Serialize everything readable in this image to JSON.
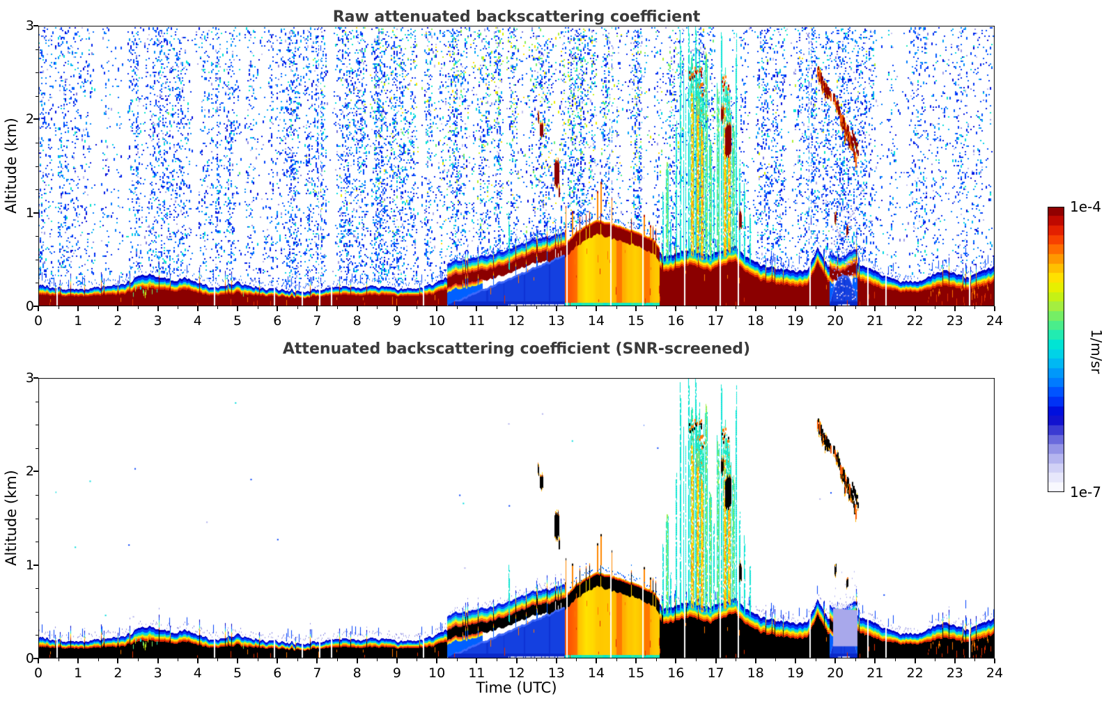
{
  "figure": {
    "background": "#ffffff"
  },
  "chart_data": {
    "type": "heatmap",
    "panels": [
      {
        "id": "raw",
        "title": "Raw attenuated backscattering coefficient",
        "noise_screened": false
      },
      {
        "id": "screened",
        "title": "Attenuated backscattering coefficient (SNR-screened)",
        "noise_screened": true
      }
    ],
    "x_axis": {
      "label": "Time (UTC)",
      "min": 0,
      "max": 24,
      "major_ticks": [
        0,
        1,
        2,
        3,
        4,
        5,
        6,
        7,
        8,
        9,
        10,
        11,
        12,
        13,
        14,
        15,
        16,
        17,
        18,
        19,
        20,
        21,
        22,
        23,
        24
      ],
      "minor_step": 0.5
    },
    "y_axis": {
      "label": "Altitude (km)",
      "min": 0,
      "max": 3,
      "major_ticks": [
        0,
        1,
        2,
        3
      ],
      "minor_step": 0.25
    },
    "colorbar": {
      "top_label": "1e-4",
      "bottom_label": "1e-7",
      "unit_label": "1/m/sr",
      "scale": "log",
      "n_steps": 30,
      "stops": [
        [
          0.0,
          "#ffffff"
        ],
        [
          0.03,
          "#f2f2fd"
        ],
        [
          0.06,
          "#e2e2fa"
        ],
        [
          0.09,
          "#ccccf5"
        ],
        [
          0.12,
          "#b2b2ee"
        ],
        [
          0.15,
          "#9494e6"
        ],
        [
          0.18,
          "#6f6fdd"
        ],
        [
          0.21,
          "#4444d4"
        ],
        [
          0.24,
          "#1b1bcd"
        ],
        [
          0.27,
          "#0000d2"
        ],
        [
          0.3,
          "#0022ee"
        ],
        [
          0.34,
          "#0048ff"
        ],
        [
          0.38,
          "#0078ff"
        ],
        [
          0.43,
          "#00a4f8"
        ],
        [
          0.47,
          "#00ccee"
        ],
        [
          0.52,
          "#00e6d2"
        ],
        [
          0.56,
          "#2deca6"
        ],
        [
          0.61,
          "#6cee6c"
        ],
        [
          0.65,
          "#a4ee40"
        ],
        [
          0.7,
          "#d6f200"
        ],
        [
          0.74,
          "#ffea00"
        ],
        [
          0.78,
          "#ffc400"
        ],
        [
          0.82,
          "#ff9400"
        ],
        [
          0.86,
          "#ff5e00"
        ],
        [
          0.9,
          "#f22c00"
        ],
        [
          0.94,
          "#cd0e00"
        ],
        [
          0.97,
          "#a30000"
        ],
        [
          1.0,
          "#7a0000"
        ]
      ]
    },
    "palette": {
      "core_raw": "#8b0000",
      "core_screened": "#000000",
      "wedge_blue": "#1440e0",
      "wedge_deep": "#0a28c8",
      "rim": [
        "#0000c8",
        "#0040ff",
        "#00ccee",
        "#55e87a",
        "#ffe800",
        "#ff9000",
        "#e02800"
      ]
    },
    "boundary_layer_top_km": [
      [
        0,
        0.22
      ],
      [
        0.5,
        0.19
      ],
      [
        1,
        0.18
      ],
      [
        1.5,
        0.2
      ],
      [
        2,
        0.24
      ],
      [
        2.3,
        0.28
      ],
      [
        2.55,
        0.34
      ],
      [
        2.8,
        0.36
      ],
      [
        3.1,
        0.3
      ],
      [
        3.4,
        0.26
      ],
      [
        3.7,
        0.3
      ],
      [
        4,
        0.26
      ],
      [
        4.3,
        0.22
      ],
      [
        4.7,
        0.24
      ],
      [
        5,
        0.26
      ],
      [
        5.3,
        0.22
      ],
      [
        5.6,
        0.2
      ],
      [
        6,
        0.19
      ],
      [
        6.5,
        0.18
      ],
      [
        7,
        0.18
      ],
      [
        7.5,
        0.19
      ],
      [
        8,
        0.2
      ],
      [
        8.5,
        0.21
      ],
      [
        9,
        0.19
      ],
      [
        9.3,
        0.21
      ],
      [
        9.6,
        0.2
      ],
      [
        10,
        0.24
      ],
      [
        10.4,
        0.32
      ],
      [
        10.8,
        0.34
      ],
      [
        11.2,
        0.4
      ],
      [
        11.6,
        0.45
      ],
      [
        12,
        0.5
      ],
      [
        12.4,
        0.55
      ],
      [
        12.8,
        0.6
      ],
      [
        13.2,
        0.66
      ],
      [
        13.5,
        0.78
      ],
      [
        14,
        0.88
      ],
      [
        14.5,
        0.84
      ],
      [
        15,
        0.78
      ],
      [
        15.4,
        0.72
      ],
      [
        15.7,
        0.55
      ],
      [
        16,
        0.58
      ],
      [
        16.4,
        0.62
      ],
      [
        16.8,
        0.55
      ],
      [
        17.2,
        0.62
      ],
      [
        17.5,
        0.66
      ],
      [
        17.8,
        0.55
      ],
      [
        18.2,
        0.45
      ],
      [
        18.6,
        0.4
      ],
      [
        19,
        0.36
      ],
      [
        19.3,
        0.38
      ],
      [
        19.55,
        0.62
      ],
      [
        19.8,
        0.42
      ],
      [
        20.1,
        0.34
      ],
      [
        20.5,
        0.46
      ],
      [
        20.8,
        0.42
      ],
      [
        21.2,
        0.33
      ],
      [
        21.6,
        0.28
      ],
      [
        22,
        0.26
      ],
      [
        22.4,
        0.34
      ],
      [
        22.7,
        0.4
      ],
      [
        23,
        0.36
      ],
      [
        23.3,
        0.3
      ],
      [
        23.6,
        0.36
      ],
      [
        24,
        0.42
      ]
    ],
    "noise_density": [
      [
        0,
        0.3
      ],
      [
        0.4,
        0.55
      ],
      [
        0.9,
        0.45
      ],
      [
        1.4,
        0.15
      ],
      [
        2,
        0.1
      ],
      [
        2.5,
        0.3
      ],
      [
        3,
        0.35
      ],
      [
        3.4,
        0.45
      ],
      [
        3.8,
        0.25
      ],
      [
        4.3,
        0.3
      ],
      [
        4.7,
        0.5
      ],
      [
        5.2,
        0.45
      ],
      [
        5.7,
        0.35
      ],
      [
        6.3,
        0.45
      ],
      [
        7,
        0.5
      ],
      [
        8,
        0.55
      ],
      [
        9,
        0.5
      ],
      [
        9.6,
        0.35
      ],
      [
        10.2,
        0.4
      ],
      [
        10.8,
        0.55
      ],
      [
        11.5,
        0.6
      ],
      [
        12,
        0.65
      ],
      [
        12.5,
        0.7
      ],
      [
        13,
        0.65
      ],
      [
        13.5,
        0.6
      ],
      [
        14,
        0.55
      ],
      [
        14.5,
        0.5
      ],
      [
        15,
        0.55
      ],
      [
        15.5,
        0.6
      ],
      [
        16,
        0.6
      ],
      [
        16.5,
        0.55
      ],
      [
        17,
        0.6
      ],
      [
        17.5,
        0.55
      ],
      [
        18,
        0.4
      ],
      [
        18.5,
        0.3
      ],
      [
        19,
        0.3
      ],
      [
        19.5,
        0.55
      ],
      [
        20,
        0.65
      ],
      [
        20.5,
        0.6
      ],
      [
        20.9,
        0.3
      ],
      [
        21.3,
        0.2
      ],
      [
        21.8,
        0.12
      ],
      [
        22.2,
        0.3
      ],
      [
        22.6,
        0.18
      ],
      [
        23,
        0.15
      ],
      [
        23.4,
        0.25
      ],
      [
        23.8,
        0.3
      ],
      [
        24,
        0.25
      ]
    ],
    "features": {
      "rain_wedge": {
        "t0": 10.25,
        "t1": 13.2,
        "top0": 0.02,
        "top1": 0.55
      },
      "shallow_wedge": {
        "t0": 19.85,
        "t1": 20.55,
        "top": 0.34
      },
      "precip": {
        "t0": 13.2,
        "t1": 15.58,
        "spike_prob": 0.07
      },
      "shafts": [
        [
          11.82,
          0.95,
          0
        ],
        [
          15.68,
          1.15,
          0
        ],
        [
          15.78,
          1.45,
          1
        ],
        [
          15.88,
          0.95,
          0
        ],
        [
          16.02,
          1.9,
          0
        ],
        [
          16.12,
          2.9,
          0
        ],
        [
          16.22,
          2.45,
          1
        ],
        [
          16.32,
          2.88,
          0
        ],
        [
          16.42,
          2.52,
          2
        ],
        [
          16.5,
          2.9,
          0
        ],
        [
          16.56,
          2.58,
          2
        ],
        [
          16.66,
          2.35,
          2
        ],
        [
          16.76,
          2.62,
          1
        ],
        [
          16.86,
          1.7,
          1
        ],
        [
          16.96,
          1.35,
          0
        ],
        [
          17.06,
          2.25,
          1
        ],
        [
          17.14,
          2.9,
          0
        ],
        [
          17.24,
          2.42,
          2
        ],
        [
          17.34,
          2.2,
          2
        ],
        [
          17.44,
          1.95,
          1
        ],
        [
          17.52,
          2.78,
          0
        ],
        [
          17.6,
          1.55,
          0
        ],
        [
          17.72,
          1.25,
          0
        ],
        [
          17.86,
          0.95,
          0
        ]
      ],
      "clouds": [
        [
          12.55,
          2.02,
          0.06,
          0.1
        ],
        [
          12.62,
          1.88,
          0.1,
          0.14
        ],
        [
          13.0,
          1.42,
          0.14,
          0.28
        ],
        [
          13.06,
          1.2,
          0.05,
          0.1
        ],
        [
          17.15,
          2.05,
          0.08,
          0.15
        ],
        [
          17.3,
          1.78,
          0.18,
          0.35
        ],
        [
          17.6,
          0.92,
          0.12,
          0.18
        ],
        [
          20.0,
          0.95,
          0.07,
          0.1
        ],
        [
          20.3,
          0.82,
          0.07,
          0.09
        ]
      ],
      "virga": [
        [
          19.55,
          2.58,
          19.73,
          2.34
        ],
        [
          19.62,
          2.5,
          19.8,
          2.28
        ],
        [
          19.7,
          2.4,
          19.88,
          2.3
        ],
        [
          19.95,
          2.3,
          20.15,
          2.0
        ],
        [
          20.05,
          2.18,
          20.25,
          1.85
        ],
        [
          20.18,
          2.05,
          20.38,
          1.72
        ],
        [
          20.3,
          1.95,
          20.5,
          1.62
        ],
        [
          20.42,
          1.88,
          20.56,
          1.7
        ]
      ],
      "blue_plume": {
        "t0": 19.62,
        "t1": 20.6,
        "a0": 1.0,
        "a1": 2.3,
        "density": 0.5
      },
      "lavender_column": {
        "t0": 19.9,
        "t1": 20.55,
        "a0": 0.08,
        "a1": 1.12,
        "solid_top": 0.52
      },
      "mottle": [
        [
          2.35,
          3.05,
          0.35
        ],
        [
          4.9,
          5.3,
          0.15
        ]
      ],
      "fleck_zones": [
        [
          22.2,
          23.9,
          0.3
        ],
        [
          13.3,
          15.6,
          0.12
        ]
      ],
      "gap_times": [
        0.45,
        4.4,
        5.9,
        6.6,
        7.05,
        7.35,
        9.65,
        13.25,
        14.35,
        15.15,
        16.2,
        17.1,
        17.55,
        19.35,
        20.8,
        21.25,
        23.35
      ]
    }
  }
}
